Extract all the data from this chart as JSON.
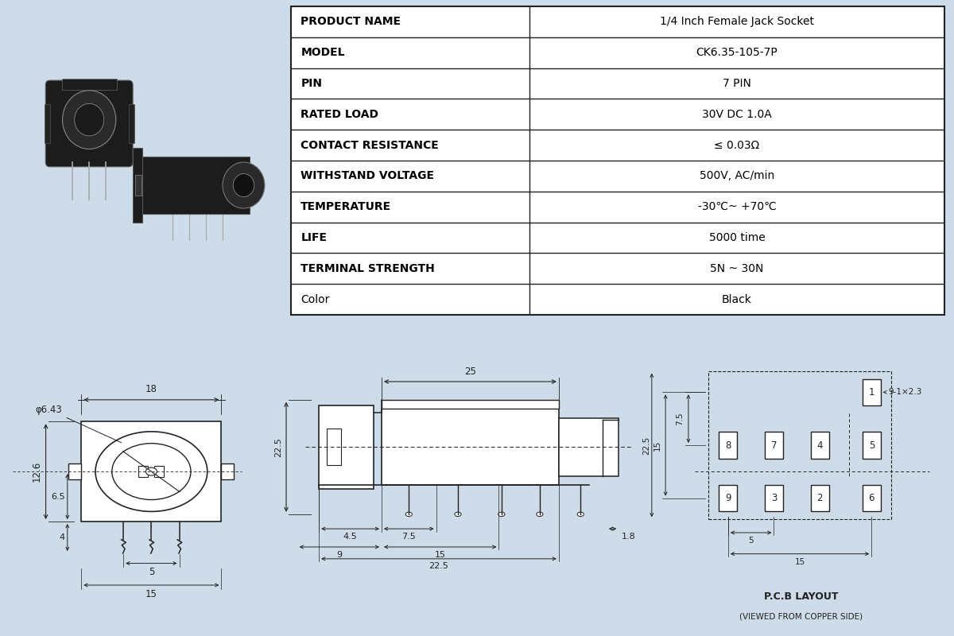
{
  "bg_color": "#cddce8",
  "table_bg": "#ffffff",
  "line_color": "#222222",
  "draw_color": "#222222",
  "table_rows": [
    [
      "PRODUCT NAME",
      "1/4 Inch Female Jack Socket",
      false
    ],
    [
      "MODEL",
      "CK6.35-105-7P",
      false
    ],
    [
      "PIN",
      "7 PIN",
      false
    ],
    [
      "RATED LOAD",
      "30V DC 1.0A",
      false
    ],
    [
      "CONTACT RESISTANCE",
      "≤ 0.03Ω",
      false
    ],
    [
      "WITHSTAND VOLTAGE",
      "500V, AC/min",
      false
    ],
    [
      "TEMPERATURE",
      "-30℃~ +70℃",
      false
    ],
    [
      "LIFE",
      "5000 time",
      false
    ],
    [
      "TERMINAL STRENGTH",
      "5N ~ 30N",
      false
    ],
    [
      "Color",
      "Black",
      true
    ]
  ],
  "col_split": 0.365,
  "table_fontsize": 10.0,
  "label_fontsize_small": 8.0
}
